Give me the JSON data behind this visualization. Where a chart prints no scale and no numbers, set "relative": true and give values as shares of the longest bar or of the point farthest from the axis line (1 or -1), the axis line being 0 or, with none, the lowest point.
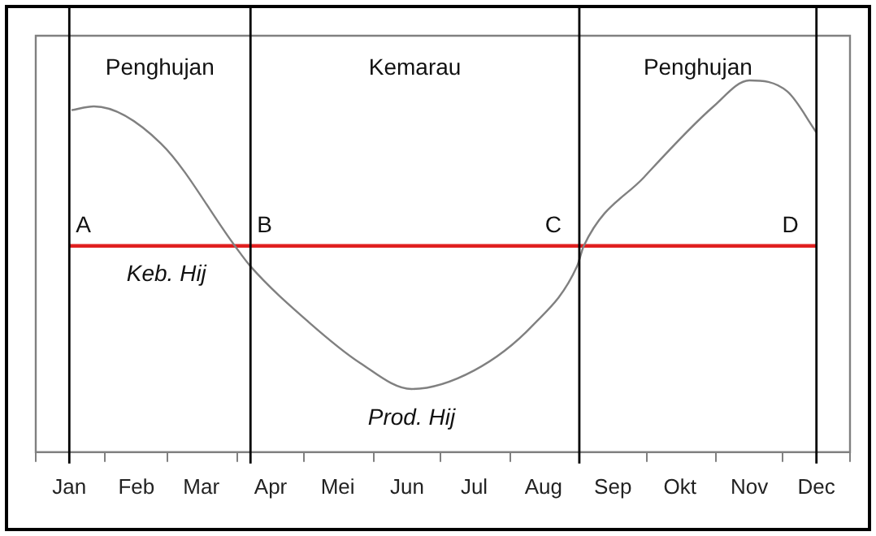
{
  "chart_data": {
    "type": "line",
    "relative": true,
    "xlim": [
      "--01-01",
      "--12-31"
    ],
    "xticks": [
      {
        "value": "--01-01",
        "label": null
      },
      {
        "value": "--01-16",
        "label": "Jan"
      },
      {
        "value": "--02-01",
        "label": null
      },
      {
        "value": "--02-15",
        "label": "Feb"
      },
      {
        "value": "--03-01",
        "label": null
      },
      {
        "value": "--03-16",
        "label": "Mar"
      },
      {
        "value": "--04-01",
        "label": null
      },
      {
        "value": "--04-16",
        "label": "Apr"
      },
      {
        "value": "--05-01",
        "label": null
      },
      {
        "value": "--05-16",
        "label": "Mei"
      },
      {
        "value": "--06-01",
        "label": null
      },
      {
        "value": "--06-16",
        "label": "Jun"
      },
      {
        "value": "--07-01",
        "label": null
      },
      {
        "value": "--07-16",
        "label": "Jul"
      },
      {
        "value": "--08-01",
        "label": null
      },
      {
        "value": "--08-16",
        "label": "Aug"
      },
      {
        "value": "--09-01",
        "label": null
      },
      {
        "value": "--09-16",
        "label": "Sep"
      },
      {
        "value": "--10-01",
        "label": null
      },
      {
        "value": "--10-16",
        "label": "Okt"
      },
      {
        "value": "--11-01",
        "label": null
      },
      {
        "value": "--11-16",
        "label": "Nov"
      },
      {
        "value": "--12-01",
        "label": null
      },
      {
        "value": "--12-16",
        "label": "Dec"
      },
      {
        "value": "--12-31",
        "label": null
      }
    ],
    "series": [
      {
        "name": "Prod. Hij",
        "color": "#808080",
        "x": [
          "--01-17",
          "--01-27",
          "--02-26",
          "--03-31",
          "--04-07",
          "--05-03",
          "--05-26",
          "--06-18",
          "--07-16",
          "--08-11",
          "--08-31",
          "--09-03",
          "--09-30",
          "--10-31",
          "--11-16",
          "--12-03",
          "--12-16"
        ],
        "values": [
          0.92,
          0.93,
          0.83,
          0.555,
          0.5,
          0.35,
          0.24,
          0.17,
          0.22,
          0.34,
          0.5,
          0.555,
          0.74,
          0.93,
          1,
          0.97,
          0.86
        ]
      },
      {
        "name": "Keb. Hij",
        "color": "#e02020",
        "x": [
          "--01-16",
          "--12-16"
        ],
        "values": [
          0.555,
          0.555
        ]
      }
    ],
    "ref_lines": [
      {
        "axis": "x",
        "value": "--01-16",
        "color": "#000000"
      },
      {
        "axis": "x",
        "value": "--04-07",
        "color": "#000000"
      },
      {
        "axis": "x",
        "value": "--09-01",
        "color": "#000000"
      },
      {
        "axis": "x",
        "value": "--12-16",
        "color": "#000000"
      }
    ],
    "annotations": [
      "Penghujan",
      "Kemarau",
      "Penghujan",
      {
        "text": "A",
        "x": "--01-16",
        "y": 0.555
      },
      {
        "text": "B",
        "x": "--04-07",
        "y": 0.555
      },
      {
        "text": "C",
        "x": "--09-01",
        "y": 0.555
      },
      {
        "text": "D",
        "x": "--12-16",
        "y": 0.555
      }
    ],
    "grid": false,
    "legend": false,
    "marker": "none",
    "line_style": "solid"
  }
}
